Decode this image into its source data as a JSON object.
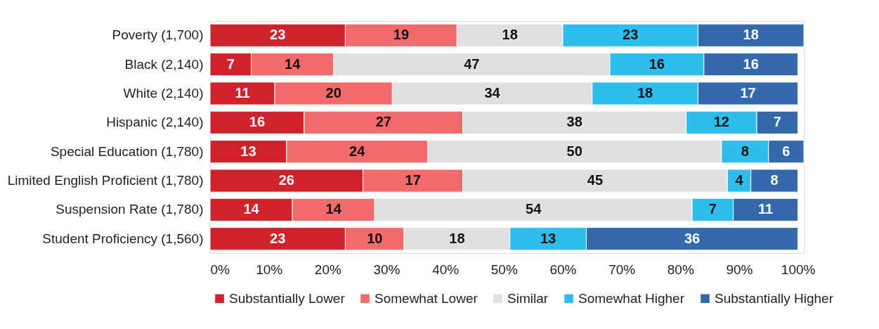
{
  "chart_data": {
    "type": "bar",
    "orientation": "horizontal",
    "stacked": true,
    "data_labels": true,
    "legend": "bottom",
    "grid": false,
    "categories": [
      "Poverty (1,700)",
      "Black (2,140)",
      "White (2,140)",
      "Hispanic (2,140)",
      "Special Education (1,780)",
      "Limited English Proficient (1,780)",
      "Suspension Rate (1,780)",
      "Student Proficiency (1,560)"
    ],
    "xlim": [
      0,
      101
    ],
    "xticks": [
      {
        "value": 0,
        "label": "0%"
      },
      {
        "value": 10,
        "label": "10%"
      },
      {
        "value": 20,
        "label": "20%"
      },
      {
        "value": 30,
        "label": "30%"
      },
      {
        "value": 40,
        "label": "40%"
      },
      {
        "value": 50,
        "label": "50%"
      },
      {
        "value": 60,
        "label": "60%"
      },
      {
        "value": 70,
        "label": "70%"
      },
      {
        "value": 80,
        "label": "80%"
      },
      {
        "value": 90,
        "label": "90%"
      },
      {
        "value": 100,
        "label": "100%"
      }
    ],
    "series": [
      {
        "name": "Substantially Lower",
        "color": "#d0222a",
        "values": [
          23,
          7,
          11,
          16,
          13,
          26,
          14,
          23
        ]
      },
      {
        "name": "Somewhat Lower",
        "color": "#f26b6b",
        "values": [
          19,
          14,
          20,
          27,
          24,
          17,
          14,
          10
        ]
      },
      {
        "name": "Similar",
        "color": "#e0e0e0",
        "values": [
          18,
          47,
          34,
          38,
          50,
          45,
          54,
          18
        ]
      },
      {
        "name": "Somewhat Higher",
        "color": "#2ebeee",
        "values": [
          23,
          16,
          18,
          12,
          8,
          4,
          7,
          13
        ]
      },
      {
        "name": "Substantially Higher",
        "color": "#346aab",
        "values": [
          18,
          16,
          17,
          7,
          6,
          8,
          11,
          36
        ]
      }
    ]
  }
}
